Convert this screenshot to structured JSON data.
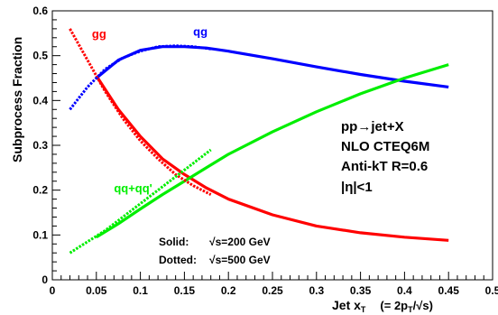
{
  "chart_data": {
    "type": "line",
    "xlabel_main": "Jet x",
    "xlabel_sub": "T",
    "xlabel_formula": "(= 2p",
    "xlabel_formula_sub": "T",
    "xlabel_formula_end": "/√s)",
    "ylabel": "Subprocess Fraction",
    "xlim": [
      0,
      0.5
    ],
    "ylim": [
      0,
      0.6
    ],
    "x_ticks": [
      "0",
      "0.05",
      "0.1",
      "0.15",
      "0.2",
      "0.25",
      "0.3",
      "0.35",
      "0.4",
      "0.45",
      "0.5"
    ],
    "y_ticks": [
      "0",
      "0.1",
      "0.2",
      "0.3",
      "0.4",
      "0.5",
      "0.6"
    ],
    "grid": false,
    "series": [
      {
        "name": "gg",
        "style": "solid",
        "color": "#ff0000",
        "x": [
          0.05,
          0.075,
          0.1,
          0.125,
          0.15,
          0.175,
          0.2,
          0.25,
          0.3,
          0.35,
          0.4,
          0.45
        ],
        "y": [
          0.455,
          0.38,
          0.32,
          0.27,
          0.235,
          0.205,
          0.18,
          0.145,
          0.12,
          0.105,
          0.095,
          0.088
        ]
      },
      {
        "name": "qg",
        "style": "solid",
        "color": "#0000ff",
        "x": [
          0.05,
          0.075,
          0.1,
          0.125,
          0.15,
          0.175,
          0.2,
          0.25,
          0.3,
          0.35,
          0.4,
          0.45
        ],
        "y": [
          0.45,
          0.49,
          0.512,
          0.52,
          0.52,
          0.517,
          0.51,
          0.493,
          0.475,
          0.458,
          0.443,
          0.43
        ]
      },
      {
        "name": "qq+qq'",
        "style": "solid",
        "color": "#00ee00",
        "x": [
          0.05,
          0.075,
          0.1,
          0.125,
          0.15,
          0.175,
          0.2,
          0.25,
          0.3,
          0.35,
          0.4,
          0.45
        ],
        "y": [
          0.095,
          0.125,
          0.158,
          0.19,
          0.22,
          0.25,
          0.28,
          0.33,
          0.375,
          0.415,
          0.45,
          0.48
        ]
      },
      {
        "name": "gg",
        "style": "dotted",
        "color": "#ff0000",
        "x": [
          0.02,
          0.04,
          0.06,
          0.08,
          0.1,
          0.12,
          0.14,
          0.16,
          0.18
        ],
        "y": [
          0.56,
          0.49,
          0.42,
          0.36,
          0.31,
          0.27,
          0.235,
          0.21,
          0.19
        ]
      },
      {
        "name": "qg",
        "style": "dotted",
        "color": "#0000ff",
        "x": [
          0.02,
          0.04,
          0.06,
          0.08,
          0.1,
          0.12,
          0.14,
          0.16,
          0.18
        ],
        "y": [
          0.38,
          0.43,
          0.47,
          0.495,
          0.51,
          0.52,
          0.522,
          0.52,
          0.515
        ]
      },
      {
        "name": "qq+qq'",
        "style": "dotted",
        "color": "#00ee00",
        "x": [
          0.02,
          0.04,
          0.06,
          0.08,
          0.1,
          0.12,
          0.14,
          0.16,
          0.18
        ],
        "y": [
          0.06,
          0.085,
          0.11,
          0.14,
          0.17,
          0.2,
          0.23,
          0.26,
          0.29
        ]
      }
    ],
    "curve_labels": [
      {
        "text": "gg",
        "color": "#ff0000",
        "x": 0.045,
        "y": 0.54
      },
      {
        "text": "qg",
        "color": "#0000ff",
        "x": 0.16,
        "y": 0.545
      },
      {
        "text": "qq+qq'",
        "color": "#00ee00",
        "x": 0.07,
        "y": 0.195
      }
    ],
    "annotations": [
      "pp→jet+X",
      "NLO CTEQ6M",
      "Anti-kT R=0.6",
      "|η|<1"
    ],
    "legend": {
      "solid_label": "Solid:",
      "solid_value": "√s=200 GeV",
      "dotted_label": "Dotted:",
      "dotted_value": "√s=500 GeV"
    }
  }
}
